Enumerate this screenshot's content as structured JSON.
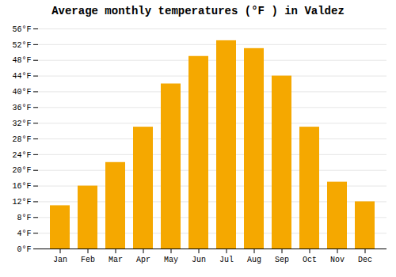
{
  "chart_data": {
    "type": "bar",
    "title": "Average monthly temperatures (°F ) in Valdez",
    "categories": [
      "Jan",
      "Feb",
      "Mar",
      "Apr",
      "May",
      "Jun",
      "Jul",
      "Aug",
      "Sep",
      "Oct",
      "Nov",
      "Dec"
    ],
    "values": [
      11,
      16,
      22,
      31,
      42,
      49,
      53,
      51,
      44,
      31,
      17,
      12
    ],
    "color": "#F5A800",
    "ylim": [
      0,
      56
    ],
    "yticks": [
      {
        "value": 0,
        "label": "0°F"
      },
      {
        "value": 4,
        "label": "4°F"
      },
      {
        "value": 8,
        "label": "8°F"
      },
      {
        "value": 12,
        "label": "12°F"
      },
      {
        "value": 16,
        "label": "16°F"
      },
      {
        "value": 20,
        "label": "20°F"
      },
      {
        "value": 24,
        "label": "24°F"
      },
      {
        "value": 28,
        "label": "28°F"
      },
      {
        "value": 32,
        "label": "32°F"
      },
      {
        "value": 36,
        "label": "36°F"
      },
      {
        "value": 40,
        "label": "40°F"
      },
      {
        "value": 44,
        "label": "44°F"
      },
      {
        "value": 48,
        "label": "48°F"
      },
      {
        "value": 52,
        "label": "52°F"
      },
      {
        "value": 56,
        "label": "56°F"
      }
    ],
    "grid": true
  }
}
